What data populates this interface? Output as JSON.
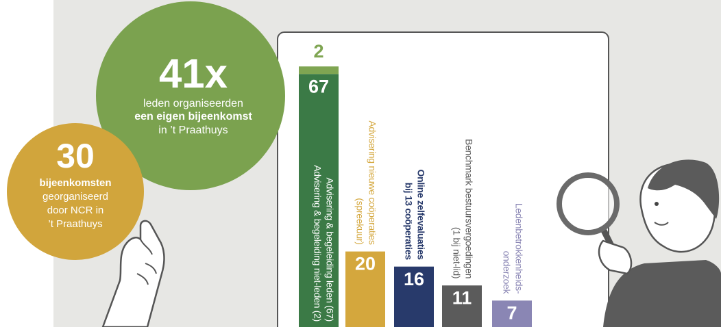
{
  "circles": [
    {
      "big": "41x",
      "lines": [
        [
          "leden organiseerden"
        ],
        [
          "een ",
          "eigen bijeenkomst"
        ],
        [
          "in ’t Praathuys"
        ]
      ]
    },
    {
      "big": "30",
      "lines": [
        [
          "bijeenkomsten"
        ],
        [
          "georganiseerd"
        ],
        [
          "door NCR in"
        ],
        [
          "’t Praathuys"
        ]
      ]
    }
  ],
  "chart_data": {
    "type": "stacked-bar",
    "bars": [
      {
        "labels": [
          "Advisering & begeleiding leden (67)",
          "Advisering & begeleiding niet-leden (2)"
        ],
        "values": [
          67,
          2
        ],
        "colors": [
          "#3b7a46",
          "#7fa552"
        ]
      },
      {
        "labels": [
          "Advisering nieuwe coöperaties",
          "(spreekuur)"
        ],
        "values": [
          20
        ],
        "colors": [
          "#d4a73d"
        ]
      },
      {
        "labels": [
          "Online zelfevaluaties",
          "bij 13 coöperaties"
        ],
        "values": [
          16
        ],
        "colors": [
          "#283a6b"
        ]
      },
      {
        "labels": [
          "Benchmark bestuursvergoedingen",
          "(1 bij niet-lid)"
        ],
        "values": [
          11
        ],
        "colors": [
          "#5b5b5b"
        ]
      },
      {
        "labels": [
          "Ledenbetrokkenheids-",
          "onderzoek"
        ],
        "values": [
          7
        ],
        "colors": [
          "#8a86b4"
        ]
      }
    ]
  }
}
